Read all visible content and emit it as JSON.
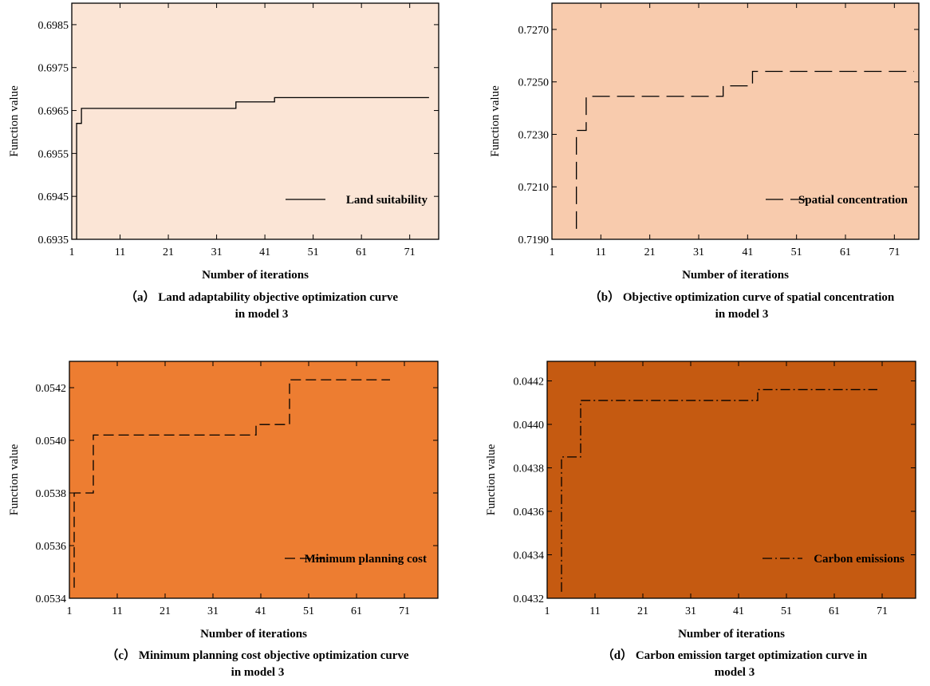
{
  "chart_data": [
    {
      "type": "line",
      "panel": "a",
      "background": "#fbe5d6",
      "line_style": "solid",
      "xlabel": "Number of iterations",
      "ylabel": "Function value",
      "xlim": [
        1,
        77
      ],
      "ylim": [
        0.6935,
        0.699
      ],
      "xticks": [
        1,
        11,
        21,
        31,
        41,
        51,
        61,
        71
      ],
      "yticks": [
        0.6935,
        0.6945,
        0.6955,
        0.6965,
        0.6975,
        0.6985
      ],
      "ytick_labels": [
        "0.6935",
        "0.6945",
        "0.6955",
        "0.6965",
        "0.6975",
        "0.6985"
      ],
      "legend_position": "lower-right",
      "series": [
        {
          "name": "Land suitability",
          "step": true,
          "x": [
            2,
            3,
            35,
            43,
            75
          ],
          "y": [
            0.6962,
            0.69655,
            0.6967,
            0.6968,
            0.6968
          ],
          "start_y": 0.6935
        }
      ],
      "caption": [
        "（a） Land adaptability objective optimization curve",
        "in model 3"
      ]
    },
    {
      "type": "line",
      "panel": "b",
      "background": "#f8cbad",
      "line_style": "long-dash",
      "xlabel": "Number of iterations",
      "ylabel": "Function value",
      "xlim": [
        1,
        76
      ],
      "ylim": [
        0.719,
        0.728
      ],
      "xticks": [
        1,
        11,
        21,
        31,
        41,
        51,
        61,
        71
      ],
      "yticks": [
        0.719,
        0.721,
        0.723,
        0.725,
        0.727
      ],
      "ytick_labels": [
        "0.7190",
        "0.7210",
        "0.7230",
        "0.7250",
        "0.7270"
      ],
      "legend_position": "lower-right",
      "series": [
        {
          "name": "Spatial concentration",
          "step": true,
          "x": [
            6,
            8,
            36,
            42,
            75
          ],
          "y": [
            0.72315,
            0.72445,
            0.72485,
            0.7254,
            0.7254
          ],
          "start_y": 0.7194
        }
      ],
      "caption": [
        "（b） Objective optimization curve of spatial concentration",
        "in model 3"
      ]
    },
    {
      "type": "line",
      "panel": "c",
      "background": "#ed7d31",
      "line_style": "dashed",
      "xlabel": "Number of iterations",
      "ylabel": "Function value",
      "xlim": [
        1,
        78
      ],
      "ylim": [
        0.0534,
        0.0543
      ],
      "xticks": [
        1,
        11,
        21,
        31,
        41,
        51,
        61,
        71
      ],
      "yticks": [
        0.0534,
        0.0536,
        0.0538,
        0.054,
        0.0542
      ],
      "ytick_labels": [
        "0.0534",
        "0.0536",
        "0.0538",
        "0.0540",
        "0.0542"
      ],
      "legend_position": "lower-right",
      "series": [
        {
          "name": "Minimum planning cost",
          "step": true,
          "x": [
            2,
            6,
            40,
            47,
            68
          ],
          "y": [
            0.0538,
            0.05402,
            0.05406,
            0.05423,
            0.05423
          ],
          "start_y": 0.05344
        }
      ],
      "caption": [
        "（c） Minimum planning cost objective optimization curve",
        "in model 3"
      ]
    },
    {
      "type": "line",
      "panel": "d",
      "background": "#c55a11",
      "line_style": "dash-dot",
      "xlabel": "Number of iterations",
      "ylabel": "Function value",
      "xlim": [
        1,
        78
      ],
      "ylim": [
        0.0432,
        0.04429
      ],
      "xticks": [
        1,
        11,
        21,
        31,
        41,
        51,
        61,
        71
      ],
      "yticks": [
        0.0432,
        0.0434,
        0.0436,
        0.0438,
        0.044,
        0.0442
      ],
      "ytick_labels": [
        "0.0432",
        "0.0434",
        "0.0436",
        "0.0438",
        "0.0440",
        "0.0442"
      ],
      "legend_position": "lower-right",
      "series": [
        {
          "name": "Carbon emissions",
          "step": true,
          "x": [
            4,
            8,
            45,
            70
          ],
          "y": [
            0.04385,
            0.04411,
            0.04416,
            0.04416
          ],
          "start_y": 0.04323
        }
      ],
      "caption": [
        "（d） Carbon emission target optimization curve in",
        "model 3"
      ]
    }
  ]
}
